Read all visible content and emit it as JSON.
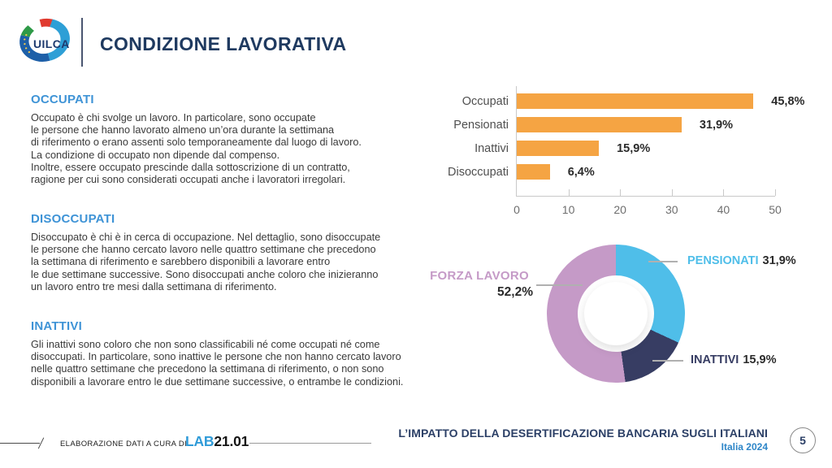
{
  "slide": {
    "title": "CONDIZIONE LAVORATIVA",
    "logo_text": "UILCA"
  },
  "sections": [
    {
      "heading": "OCCUPATI",
      "body": "Occupato è chi svolge un lavoro. In particolare, sono occupate\nle persone che hanno lavorato almeno un’ora durante la settimana\ndi riferimento o erano assenti solo temporaneamente dal luogo di lavoro.\nLa condizione di occupato non dipende dal compenso.\nInoltre, essere occupato prescinde dalla sottoscrizione di un contratto,\nragione per cui sono considerati occupati anche i lavoratori irregolari."
    },
    {
      "heading": "DISOCCUPATI",
      "body": "Disoccupato è chi è in cerca di occupazione. Nel dettaglio, sono disoccupate\nle persone che hanno cercato lavoro nelle quattro settimane che precedono\nla settimana di riferimento e sarebbero disponibili a lavorare entro\nle due settimane successive. Sono disoccupati anche coloro che inizieranno\nun lavoro entro tre mesi dalla settimana di riferimento."
    },
    {
      "heading": "INATTIVI",
      "body": "Gli inattivi sono coloro che non sono classificabili né come occupati né come\ndisoccupati. In particolare, sono inattive le persone che non hanno cercato lavoro\nnelle quattro settimane che precedono la settimana di riferimento, o non sono\ndisponibili a lavorare entro le due settimane successive, o entrambe le condizioni."
    }
  ],
  "chart_data": [
    {
      "type": "bar",
      "orientation": "horizontal",
      "title": "",
      "xlabel": "",
      "ylabel": "",
      "categories": [
        "Occupati",
        "Pensionati",
        "Inattivi",
        "Disoccupati"
      ],
      "values": [
        45.8,
        31.9,
        15.9,
        6.4
      ],
      "value_labels": [
        "45,8%",
        "31,9%",
        "15,9%",
        "6,4%"
      ],
      "xlim": [
        0,
        50
      ],
      "xticks": [
        0,
        10,
        20,
        30,
        40,
        50
      ],
      "bar_color": "#F5A443",
      "grid": false,
      "legend": "none"
    },
    {
      "type": "donut",
      "start_angle_deg": 0,
      "direction": "clockwise",
      "segments": [
        {
          "label": "PENSIONATI",
          "value": 31.9,
          "display": "31,9%",
          "color": "#4FBEE9"
        },
        {
          "label": "INATTIVI",
          "value": 15.9,
          "display": "15,9%",
          "color": "#373D63"
        },
        {
          "label": "FORZA LAVORO",
          "value": 52.2,
          "display": "52,2%",
          "color": "#C59AC7"
        }
      ]
    }
  ],
  "footer": {
    "credit_prefix": "ELABORAZIONE DATI A CURA DI",
    "lab_name_blue": "LAB",
    "lab_name_dark": "21.01",
    "report_title": "L’IMPATTO DELLA DESERTIFICAZIONE BANCARIA SUGLI ITALIANI",
    "report_subtitle": "Italia 2024",
    "page_number": "5"
  },
  "colors": {
    "title_navy": "#1F3A60",
    "section_heading_blue": "#3E93D6",
    "bar_orange": "#F5A443",
    "donut_blue": "#4FBEE9",
    "donut_navy": "#373D63",
    "donut_mauve": "#C59AC7",
    "footer_navy": "#2B3F66",
    "lab_blue": "#2F9BD8",
    "subtitle_blue": "#2E86C8"
  }
}
